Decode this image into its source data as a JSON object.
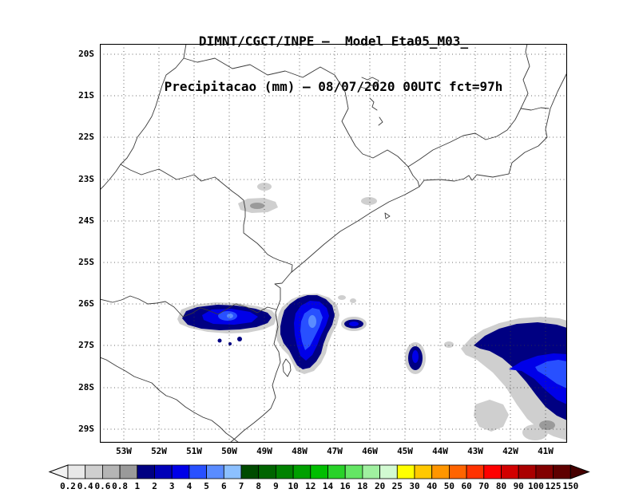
{
  "title": {
    "line1": "DIMNT/CGCT/INPE —  Model Eta05_M03_",
    "line2": "Precipitacao (mm) — 08/07/2020 00UTC fct=97h"
  },
  "map": {
    "lat_labels": [
      "20S",
      "21S",
      "22S",
      "23S",
      "24S",
      "25S",
      "26S",
      "27S",
      "28S",
      "29S"
    ],
    "lon_labels": [
      "53W",
      "52W",
      "51W",
      "50W",
      "49W",
      "48W",
      "47W",
      "46W",
      "45W",
      "44W",
      "43W",
      "42W",
      "41W"
    ]
  },
  "colorbar": {
    "unit": "mm",
    "values": [
      "0.2",
      "0.4",
      "0.6",
      "0.8",
      "1",
      "2",
      "3",
      "4",
      "5",
      "6",
      "7",
      "8",
      "9",
      "10",
      "12",
      "14",
      "16",
      "18",
      "20",
      "25",
      "30",
      "40",
      "50",
      "60",
      "70",
      "80",
      "90",
      "100",
      "125",
      "150"
    ],
    "segment_colors": [
      "#e8e8e8",
      "#cfcfcf",
      "#b5b5b5",
      "#9a9a9a",
      "#000082",
      "#0000b8",
      "#0000e8",
      "#2850ff",
      "#5a8cff",
      "#8cc0ff",
      "#004b00",
      "#006400",
      "#008200",
      "#00a000",
      "#00be00",
      "#28d228",
      "#64e664",
      "#a0f0a0",
      "#d2fad2",
      "#ffff00",
      "#ffc800",
      "#ff9600",
      "#ff6400",
      "#ff3200",
      "#ff0000",
      "#d20000",
      "#aa0000",
      "#820000",
      "#5f0000"
    ],
    "arrow_left_color": "#f2f2f2",
    "arrow_right_color": "#460000"
  }
}
